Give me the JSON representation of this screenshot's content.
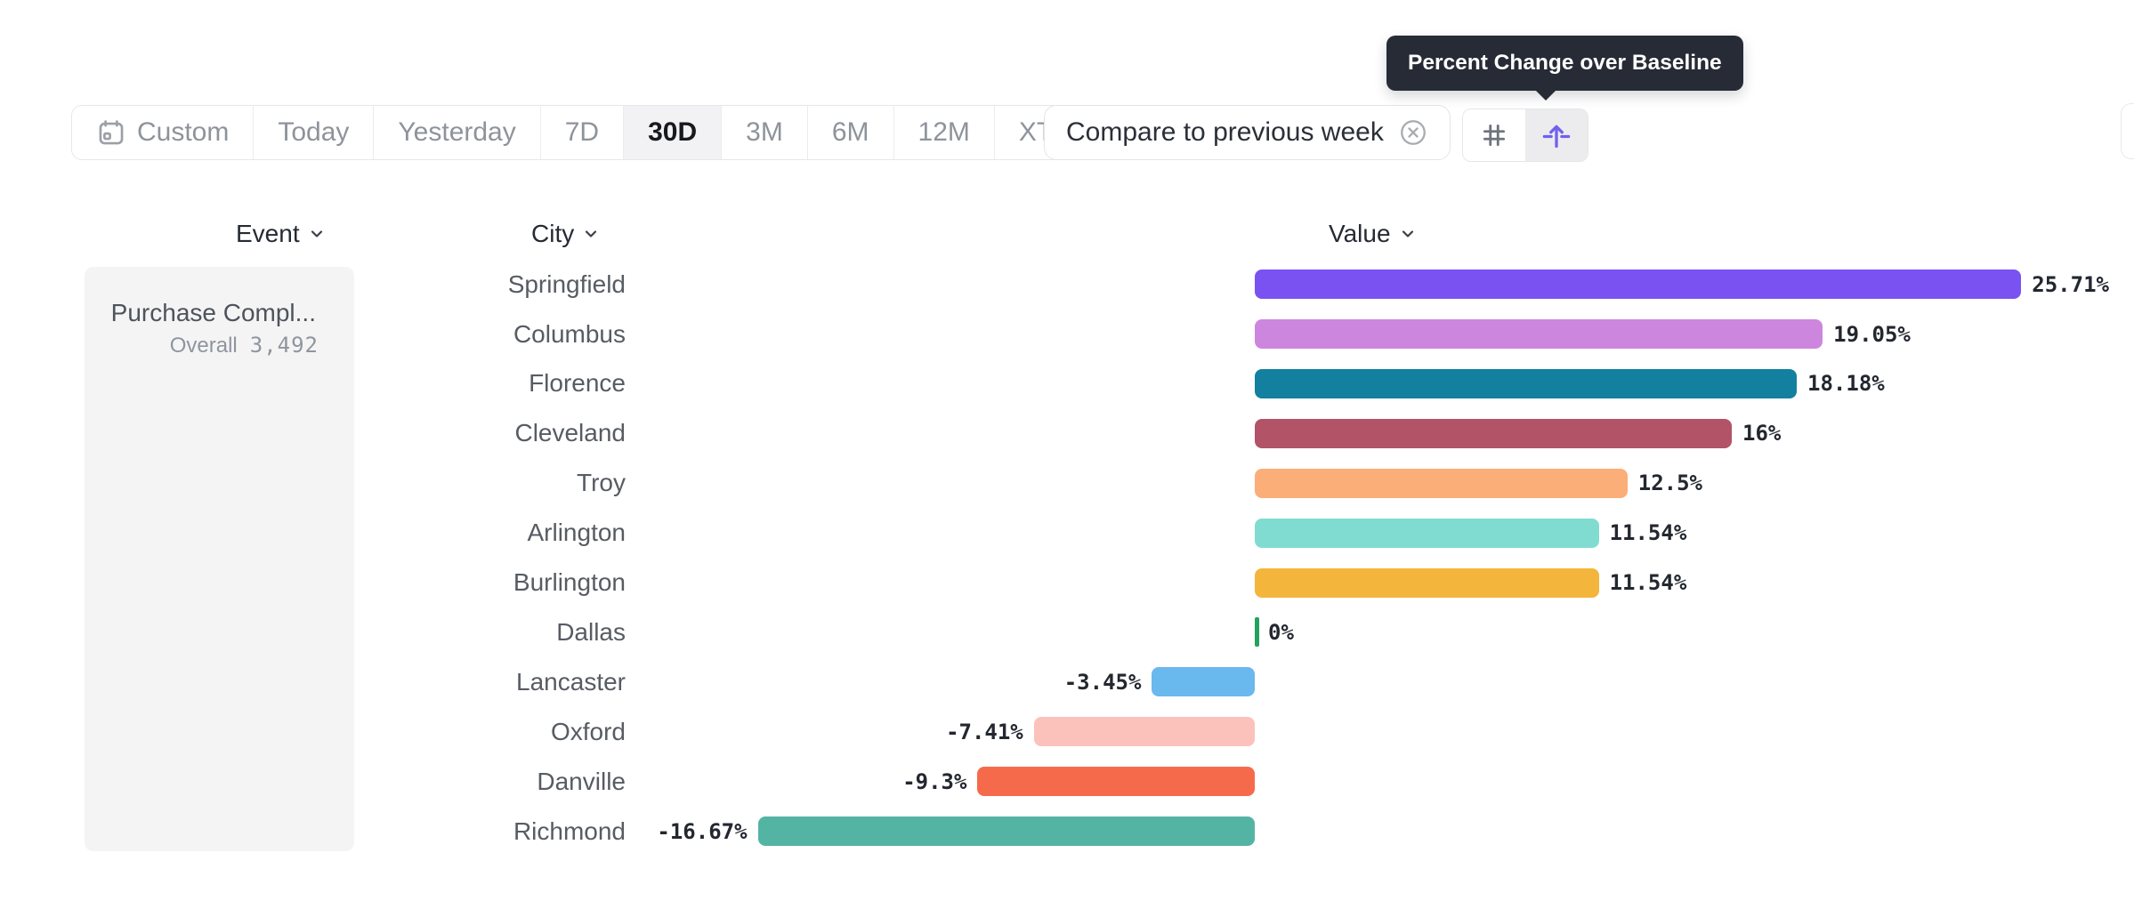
{
  "tooltip": {
    "text": "Percent Change over Baseline"
  },
  "toolbar": {
    "date_buttons": [
      {
        "label": "Custom",
        "icon": "calendar-icon"
      },
      {
        "label": "Today"
      },
      {
        "label": "Yesterday"
      },
      {
        "label": "7D"
      },
      {
        "label": "30D",
        "active": true
      },
      {
        "label": "3M"
      },
      {
        "label": "6M"
      },
      {
        "label": "12M"
      },
      {
        "label": "XTD",
        "chevron": true
      }
    ],
    "compare_label": "Compare to previous week",
    "view_toggles": [
      {
        "name": "gridlines",
        "icon": "hash-icon",
        "active": false
      },
      {
        "name": "percent-change-over-baseline",
        "icon": "baseline-arrow-icon",
        "active": true
      }
    ]
  },
  "columns": {
    "event": "Event",
    "city": "City",
    "value": "Value"
  },
  "event_panel": {
    "title": "Purchase Compl...",
    "overall_label": "Overall",
    "overall_value": "3,492"
  },
  "chart_data": {
    "type": "bar",
    "orientation": "horizontal",
    "title": "Percent Change over Baseline",
    "xlabel": "Value",
    "ylabel": "City",
    "value_unit": "percent",
    "baseline": 0,
    "xlim": [
      -20,
      30
    ],
    "grid": false,
    "legend": false,
    "categories": [
      "Springfield",
      "Columbus",
      "Florence",
      "Cleveland",
      "Troy",
      "Arlington",
      "Burlington",
      "Dallas",
      "Lancaster",
      "Oxford",
      "Danville",
      "Richmond"
    ],
    "values": [
      25.71,
      19.05,
      18.18,
      16,
      12.5,
      11.54,
      11.54,
      0,
      -3.45,
      -7.41,
      -9.3,
      -16.67
    ],
    "value_labels": [
      "25.71%",
      "19.05%",
      "18.18%",
      "16%",
      "12.5%",
      "11.54%",
      "11.54%",
      "0%",
      "-3.45%",
      "-7.41%",
      "-9.3%",
      "-16.67%"
    ],
    "colors": [
      "#7a52f2",
      "#cd86de",
      "#12809e",
      "#b25367",
      "#fbae78",
      "#80dcd0",
      "#f4b53d",
      "#21a25d",
      "#69b8ee",
      "#fac2bb",
      "#f66a4c",
      "#54b4a4"
    ]
  }
}
